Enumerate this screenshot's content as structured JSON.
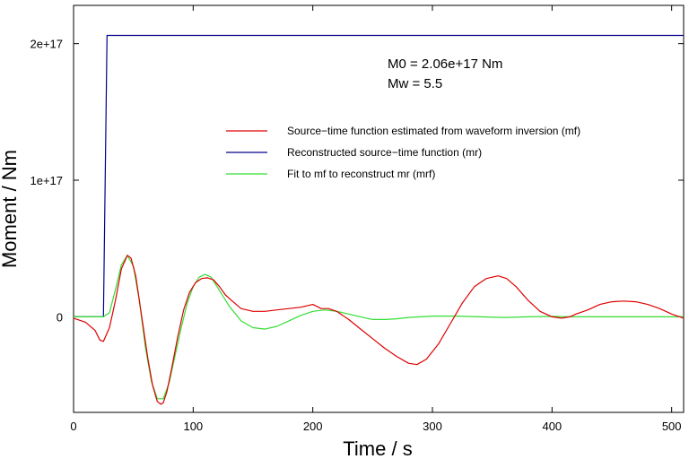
{
  "chart_data": {
    "type": "line",
    "xlabel": "Time / s",
    "ylabel": "Moment / Nm",
    "xlim": [
      0,
      510
    ],
    "ylim": [
      -7e+16,
      2.28e+17
    ],
    "x_ticks": [
      0,
      100,
      200,
      300,
      400,
      500
    ],
    "x_tick_labels": [
      "0",
      "100",
      "200",
      "300",
      "400",
      "500"
    ],
    "y_ticks": [
      0,
      1e+17,
      2e+17
    ],
    "y_tick_labels": [
      "0",
      "1e+17",
      "2e+17"
    ],
    "grid": false,
    "legend_position": "upper-right",
    "annotations": [
      "M0 = 2.06e+17 Nm",
      "Mw = 5.5"
    ],
    "series": [
      {
        "name": "Source−time function estimated from waveform inversion (mf)",
        "color": "#dd0000",
        "x": [
          0,
          10,
          18,
          22,
          25,
          30,
          35,
          40,
          45,
          48,
          52,
          57,
          62,
          66,
          70,
          73,
          75,
          78,
          82,
          87,
          92,
          97,
          102,
          107,
          112,
          117,
          122,
          127,
          132,
          140,
          150,
          160,
          170,
          180,
          190,
          200,
          207,
          213,
          220,
          230,
          240,
          250,
          260,
          270,
          280,
          287,
          295,
          305,
          315,
          325,
          335,
          345,
          355,
          362,
          370,
          380,
          390,
          400,
          408,
          415,
          420,
          430,
          440,
          450,
          460,
          470,
          480,
          490,
          500,
          510
        ],
        "y": [
          -1000000000000000.0,
          -4000000000000000.0,
          -1e+16,
          -1.7e+16,
          -1.8e+16,
          -8000000000000000.0,
          1.2e+16,
          3.5e+16,
          4.5e+16,
          4.3e+16,
          3e+16,
          0.0,
          -3e+16,
          -5e+16,
          -6.2e+16,
          -6.4e+16,
          -6.3e+16,
          -5.5e+16,
          -3.8e+16,
          -1.5e+16,
          5000000000000000.0,
          1.8e+16,
          2.5e+16,
          2.8e+16,
          2.85e+16,
          2.7e+16,
          2.2e+16,
          1.6e+16,
          1.2e+16,
          6000000000000000.0,
          4000000000000000.0,
          4000000000000000.0,
          5000000000000000.0,
          6000000000000000.0,
          7000000000000000.0,
          9000000000000000.0,
          6000000000000000.0,
          6000000000000000.0,
          4000000000000000.0,
          -2000000000000000.0,
          -9000000000000000.0,
          -1.6e+16,
          -2.3e+16,
          -2.9e+16,
          -3.4e+16,
          -3.5e+16,
          -3.1e+16,
          -2e+16,
          -5000000000000000.0,
          1e+16,
          2.2e+16,
          2.8e+16,
          3e+16,
          2.8e+16,
          2.2e+16,
          1.2e+16,
          4000000000000000.0,
          0.0,
          -1000000000000000.0,
          0.0,
          2000000000000000.0,
          5000000000000000.0,
          9000000000000000.0,
          1.1e+16,
          1.15e+16,
          1.1e+16,
          9000000000000000.0,
          6000000000000000.0,
          2000000000000000.0,
          -1000000000000000.0
        ]
      },
      {
        "name": "Reconstructed source−time function (mr)",
        "color": "#00008b",
        "x": [
          0,
          25,
          28,
          510
        ],
        "y": [
          0,
          0,
          2.06e+17,
          2.06e+17
        ]
      },
      {
        "name": "Fit to mf to reconstruct mr (mrf)",
        "color": "#33dd33",
        "x": [
          0,
          25,
          30,
          35,
          40,
          45,
          50,
          55,
          60,
          65,
          70,
          75,
          80,
          85,
          90,
          95,
          100,
          105,
          110,
          115,
          120,
          130,
          140,
          150,
          160,
          170,
          180,
          190,
          200,
          210,
          220,
          230,
          240,
          250,
          260,
          270,
          280,
          290,
          300,
          320,
          340,
          360,
          380,
          400,
          420,
          440,
          460,
          480,
          500,
          510
        ],
        "y": [
          0,
          0,
          3000000000000000.0,
          2e+16,
          3.8e+16,
          4.5e+16,
          3.7e+16,
          1.2e+16,
          -2.2e+16,
          -4.7e+16,
          -6e+16,
          -6e+16,
          -4.8e+16,
          -2.8e+16,
          -8000000000000000.0,
          1e+16,
          2.2e+16,
          2.9e+16,
          3.1e+16,
          2.9e+16,
          2.2e+16,
          8000000000000000.0,
          -3000000000000000.0,
          -8000000000000000.0,
          -9000000000000000.0,
          -7000000000000000.0,
          -3000000000000000.0,
          1000000000000000.0,
          4000000000000000.0,
          5000000000000000.0,
          4000000000000000.0,
          2000000000000000.0,
          0.0,
          -2000000000000000.0,
          -2000000000000000.0,
          -1500000000000000.0,
          -500000000000000.0,
          0.0,
          500000000000000.0,
          500000000000000.0,
          0.0,
          -500000000000000.0,
          0.0,
          300000000000000.0,
          0.0,
          0.0,
          0.0,
          0.0,
          0.0,
          0.0
        ]
      }
    ]
  }
}
